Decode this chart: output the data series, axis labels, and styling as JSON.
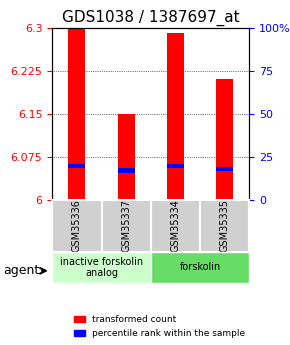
{
  "title": "GDS1038 / 1387697_at",
  "samples": [
    "GSM35336",
    "GSM35337",
    "GSM35334",
    "GSM35335"
  ],
  "red_values": [
    6.3,
    6.15,
    6.29,
    6.21
  ],
  "blue_values": [
    6.055,
    6.048,
    6.055,
    6.05
  ],
  "ymin": 6.0,
  "ymax": 6.3,
  "yticks_left": [
    6.0,
    6.075,
    6.15,
    6.225,
    6.3
  ],
  "yticks_right": [
    0,
    25,
    50,
    75,
    100
  ],
  "ytick_labels_left": [
    "6",
    "6.075",
    "6.15",
    "6.225",
    "6.3"
  ],
  "ytick_labels_right": [
    "0",
    "25",
    "50",
    "75",
    "100%"
  ],
  "bar_width": 0.35,
  "agent_groups": [
    {
      "label": "inactive forskolin\nanalog",
      "samples": [
        0,
        1
      ],
      "color": "#ccffcc"
    },
    {
      "label": "forskolin",
      "samples": [
        2,
        3
      ],
      "color": "#66dd66"
    }
  ],
  "legend_red": "transformed count",
  "legend_blue": "percentile rank within the sample",
  "agent_label": "agent",
  "title_fontsize": 11,
  "axis_label_fontsize": 8,
  "tick_fontsize": 8
}
